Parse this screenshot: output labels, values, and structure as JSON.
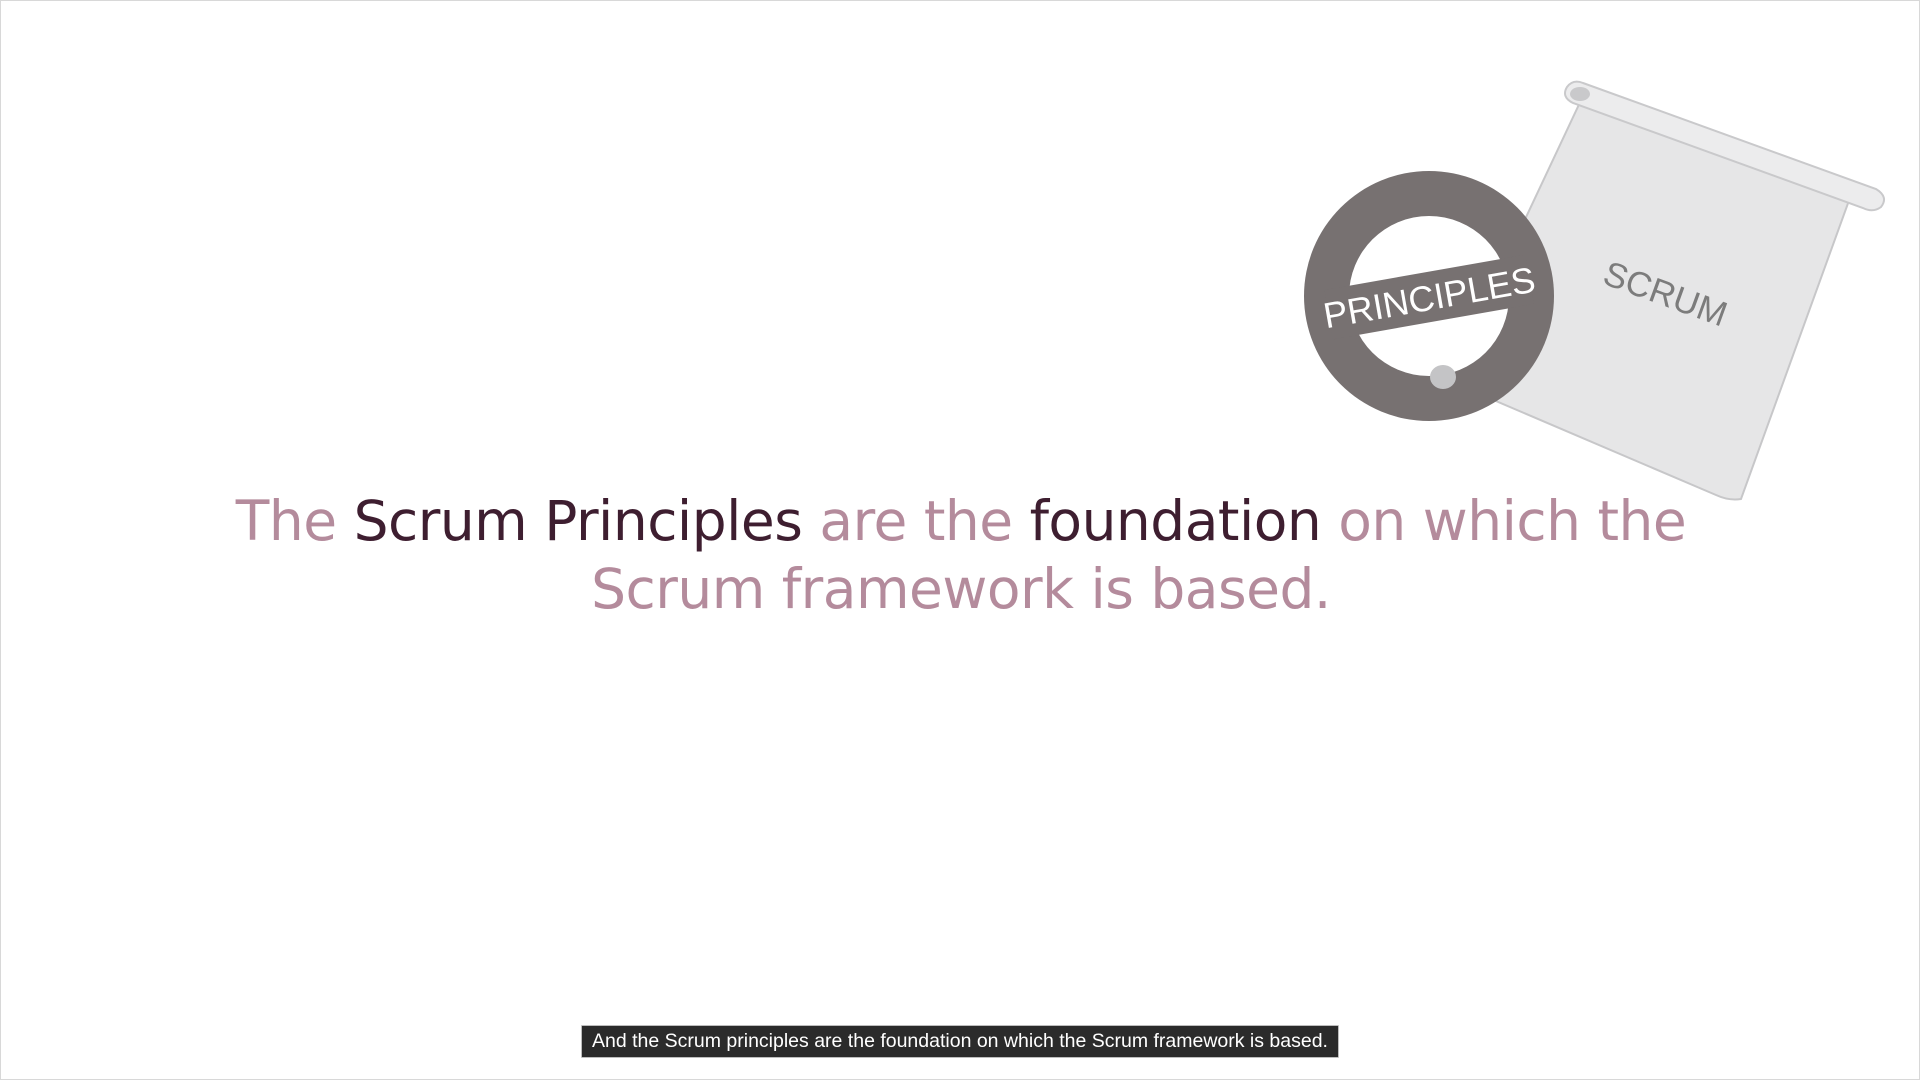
{
  "slide": {
    "headline": {
      "line1": [
        {
          "text": "The ",
          "style": "muted"
        },
        {
          "text": "Scrum Principles",
          "style": "strong"
        },
        {
          "text": " are the ",
          "style": "muted"
        },
        {
          "text": "foundation",
          "style": "strong"
        },
        {
          "text": " on which the",
          "style": "muted"
        }
      ],
      "line2": "Scrum framework is based."
    },
    "illustration": {
      "seal_label": "PRINCIPLES",
      "scroll_label": "SCRUM"
    },
    "colors": {
      "muted_text": "#b48b9c",
      "strong_text": "#3e1e30",
      "seal": "#777171",
      "scroll": "#e6e6e7"
    }
  },
  "caption": {
    "text": "And the Scrum principles are the foundation on which the Scrum framework is based."
  }
}
